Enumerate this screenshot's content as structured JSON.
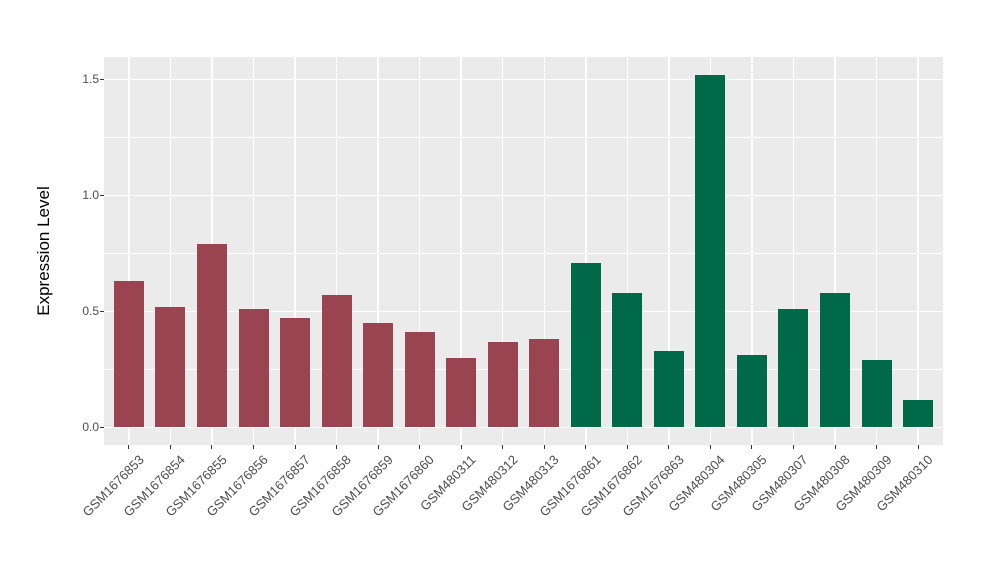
{
  "chart_data": {
    "type": "bar",
    "title": "",
    "xlabel": "",
    "ylabel": "Expression Level",
    "legend": "none",
    "grid": true,
    "panel_bg": "#EBEBEB",
    "grid_color": "#FFFFFF",
    "tick_color": "#333333",
    "tick_label_color": "#4D4D4D",
    "axis_title_color": "#000000",
    "ylim": [
      -0.076,
      1.596
    ],
    "yticks": {
      "values": [
        0,
        0.5,
        1.0,
        1.5
      ],
      "labels": [
        "0.0",
        "0.5",
        "1.0",
        "1.5"
      ]
    },
    "minor_gridlines": [
      0.25,
      0.75,
      1.25
    ],
    "group_colors": {
      "maroon": "#9A4452",
      "green": "#006947"
    },
    "categories": [
      "GSM1676853",
      "GSM1676854",
      "GSM1676855",
      "GSM1676856",
      "GSM1676857",
      "GSM1676858",
      "GSM1676859",
      "GSM1676860",
      "GSM480311",
      "GSM480312",
      "GSM480313",
      "GSM1676861",
      "GSM1676862",
      "GSM1676863",
      "GSM480304",
      "GSM480305",
      "GSM480307",
      "GSM480308",
      "GSM480309",
      "GSM480310"
    ],
    "bars": [
      {
        "label": "GSM1676853",
        "value": 0.63,
        "group": "maroon"
      },
      {
        "label": "GSM1676854",
        "value": 0.52,
        "group": "maroon"
      },
      {
        "label": "GSM1676855",
        "value": 0.79,
        "group": "maroon"
      },
      {
        "label": "GSM1676856",
        "value": 0.51,
        "group": "maroon"
      },
      {
        "label": "GSM1676857",
        "value": 0.47,
        "group": "maroon"
      },
      {
        "label": "GSM1676858",
        "value": 0.57,
        "group": "maroon"
      },
      {
        "label": "GSM1676859",
        "value": 0.45,
        "group": "maroon"
      },
      {
        "label": "GSM1676860",
        "value": 0.41,
        "group": "maroon"
      },
      {
        "label": "GSM480311",
        "value": 0.3,
        "group": "maroon"
      },
      {
        "label": "GSM480312",
        "value": 0.37,
        "group": "maroon"
      },
      {
        "label": "GSM480313",
        "value": 0.38,
        "group": "maroon"
      },
      {
        "label": "GSM1676861",
        "value": 0.71,
        "group": "green"
      },
      {
        "label": "GSM1676862",
        "value": 0.58,
        "group": "green"
      },
      {
        "label": "GSM1676863",
        "value": 0.33,
        "group": "green"
      },
      {
        "label": "GSM480304",
        "value": 1.52,
        "group": "green"
      },
      {
        "label": "GSM480305",
        "value": 0.31,
        "group": "green"
      },
      {
        "label": "GSM480307",
        "value": 0.51,
        "group": "green"
      },
      {
        "label": "GSM480308",
        "value": 0.58,
        "group": "green"
      },
      {
        "label": "GSM480309",
        "value": 0.29,
        "group": "green"
      },
      {
        "label": "GSM480310",
        "value": 0.12,
        "group": "green"
      }
    ]
  }
}
